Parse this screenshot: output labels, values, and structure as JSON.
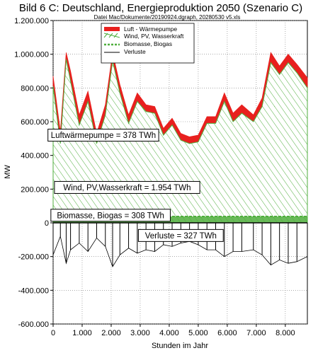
{
  "chart_data": {
    "type": "area",
    "title": "Bild 6 C: Deutschland, Energieproduktion 2050 (Szenario C)",
    "subtitle": "Datei Mac/Dokumente/20190924.dgraph, 20280530 v5.xls",
    "xlabel": "Stunden im Jahr",
    "ylabel": "MW",
    "xlim": [
      0,
      8760
    ],
    "ylim": [
      -600000,
      1200000
    ],
    "x_ticks": [
      0,
      1000,
      2000,
      3000,
      4000,
      5000,
      6000,
      7000,
      8000
    ],
    "x_tick_labels": [
      "0",
      "1.000",
      "2.000",
      "3.000",
      "4.000",
      "5.000",
      "6.000",
      "7.000",
      "8.000"
    ],
    "y_ticks": [
      -600000,
      -400000,
      -200000,
      0,
      200000,
      400000,
      600000,
      800000,
      1000000,
      1200000
    ],
    "y_tick_labels": [
      "-600.000",
      "-400.000",
      "-200.000",
      "0",
      "200.000",
      "400.000",
      "600.000",
      "800.000",
      "1.000.000",
      "1.200.000"
    ],
    "grid": true,
    "legend_position": "top-center",
    "colors": {
      "luft": "#e8201e",
      "wind": "#4fae3c",
      "bio": "#4fae3c",
      "verluste": "#000000"
    },
    "series": [
      {
        "name": "Luft - Wärmepumpe",
        "style": "red fill on top of wind",
        "x": [
          0,
          250,
          450,
          600,
          900,
          1200,
          1500,
          1800,
          2050,
          2300,
          2600,
          2900,
          3200,
          3500,
          3800,
          4100,
          4400,
          4700,
          5000,
          5300,
          5600,
          5900,
          6200,
          6500,
          6900,
          7200,
          7500,
          7800,
          8100,
          8400,
          8760
        ],
        "values": [
          870000,
          540000,
          1010000,
          900000,
          640000,
          780000,
          530000,
          700000,
          1010000,
          820000,
          640000,
          770000,
          700000,
          690000,
          560000,
          620000,
          530000,
          510000,
          520000,
          630000,
          630000,
          770000,
          650000,
          700000,
          640000,
          740000,
          1010000,
          930000,
          1000000,
          940000,
          860000
        ]
      },
      {
        "name": "Wind, PV, Wasserkraft",
        "style": "green hatched area",
        "x": [
          0,
          250,
          450,
          600,
          900,
          1200,
          1500,
          1800,
          2050,
          2300,
          2600,
          2900,
          3200,
          3500,
          3800,
          4100,
          4400,
          4700,
          5000,
          5300,
          5600,
          5900,
          6200,
          6500,
          6900,
          7200,
          7500,
          7800,
          8100,
          8400,
          8760
        ],
        "values": [
          810000,
          470000,
          970000,
          840000,
          580000,
          720000,
          470000,
          640000,
          960000,
          770000,
          590000,
          720000,
          660000,
          650000,
          520000,
          580000,
          490000,
          470000,
          480000,
          590000,
          590000,
          720000,
          600000,
          650000,
          600000,
          690000,
          950000,
          880000,
          950000,
          890000,
          800000
        ]
      },
      {
        "name": "Biomasse, Biogas",
        "style": "green dashed band",
        "x": [
          0,
          8760
        ],
        "values": [
          38000,
          38000
        ]
      },
      {
        "name": "Verluste",
        "style": "black negative bars",
        "x": [
          0,
          250,
          450,
          600,
          900,
          1200,
          1500,
          1800,
          2050,
          2300,
          2600,
          2900,
          3200,
          3500,
          3800,
          4100,
          4400,
          4700,
          5000,
          5300,
          5600,
          5900,
          6200,
          6500,
          6900,
          7200,
          7500,
          7800,
          8100,
          8400,
          8760
        ],
        "values": [
          -190000,
          -80000,
          -240000,
          -160000,
          -120000,
          -170000,
          -90000,
          -140000,
          -260000,
          -190000,
          -150000,
          -180000,
          -160000,
          -170000,
          -130000,
          -140000,
          -120000,
          -110000,
          -130000,
          -160000,
          -160000,
          -200000,
          -170000,
          -170000,
          -160000,
          -190000,
          -250000,
          -220000,
          -240000,
          -230000,
          -200000
        ]
      }
    ],
    "annotations": [
      {
        "text": "Luftwärmepumpe = 378 TWh",
        "x": 1730,
        "y": 520000
      },
      {
        "text": "Wind, PV,Wasserkraft = 1.954 TWh",
        "x": 2550,
        "y": 210000
      },
      {
        "text": "Biomasse, Biogas = 308 TWh",
        "x": 1980,
        "y": 45000
      },
      {
        "text": "Verluste = 327 TWh",
        "x": 4400,
        "y": -75000
      }
    ]
  }
}
